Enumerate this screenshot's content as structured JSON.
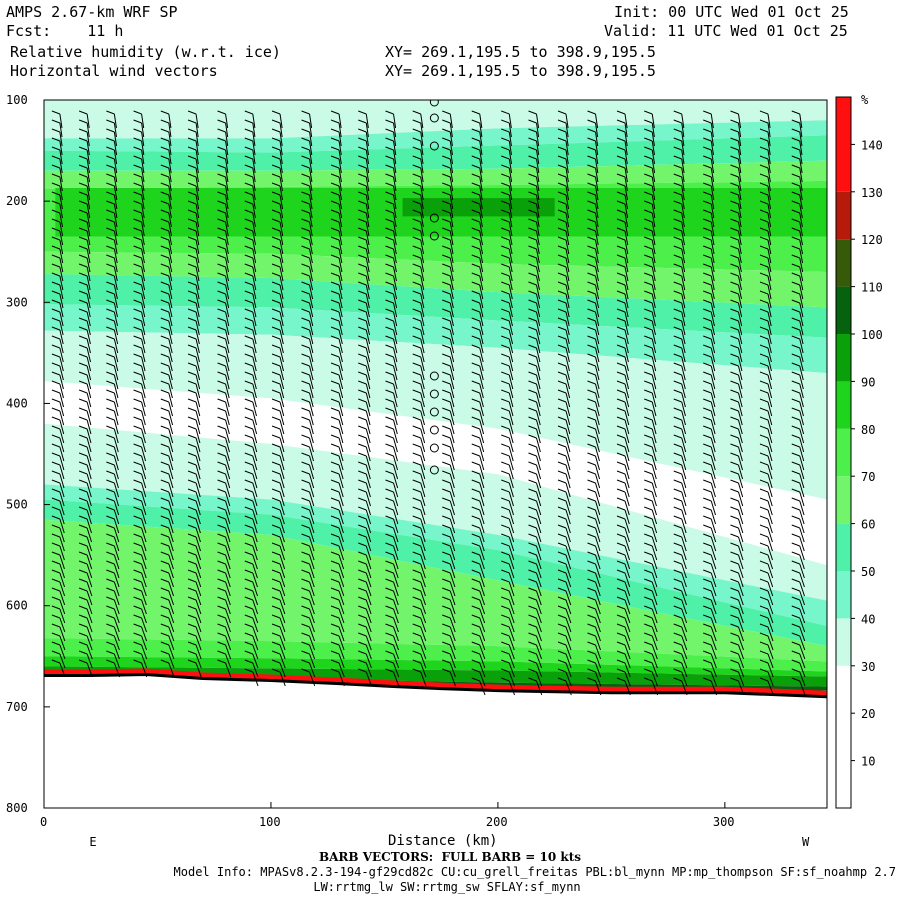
{
  "header": {
    "model": "AMPS 2.67-km WRF SP",
    "fcst_label": "Fcst:",
    "fcst_value": "11 h",
    "field1": "Relative humidity (w.r.t. ice)",
    "field2": "Horizontal wind vectors",
    "xy1": "XY= 269.1,195.5 to 398.9,195.5",
    "xy2": "XY= 269.1,195.5 to 398.9,195.5",
    "init": "Init: 00 UTC Wed 01 Oct 25",
    "valid": "Valid: 11 UTC Wed 01 Oct 25"
  },
  "footer": {
    "barb": "BARB VECTORS:  FULL BARB = 10 kts",
    "model_info": "Model Info: MPASv8.2.3-194-gf29cd82c CU:cu_grell_freitas PBL:bl_mynn MP:mp_thompson SF:sf_noahmp 2.7",
    "model_info2": "LW:rrtmg_lw SW:rrtmg_sw SFLAY:sf_mynn"
  },
  "chart_data": {
    "type": "heatmap",
    "xlabel": "Distance (km)",
    "ylabel": "",
    "xlim": [
      0,
      345
    ],
    "ylim": [
      100,
      800
    ],
    "x_ticks": [
      0,
      100,
      200,
      300
    ],
    "y_ticks": [
      100,
      200,
      300,
      400,
      500,
      600,
      700,
      800
    ],
    "left_end_label": "E",
    "right_end_label": "W",
    "colorbar": {
      "unit": "%",
      "ticks": [
        10,
        20,
        30,
        40,
        50,
        60,
        70,
        80,
        90,
        100,
        110,
        120,
        130,
        140
      ],
      "bins": [
        {
          "from": 0,
          "to": 20,
          "color": "#ffffff"
        },
        {
          "from": 20,
          "to": 30,
          "color": "#ffffff"
        },
        {
          "from": 30,
          "to": 40,
          "color": "#c9fbe6"
        },
        {
          "from": 40,
          "to": 50,
          "color": "#77f5cb"
        },
        {
          "from": 50,
          "to": 60,
          "color": "#4ff0a8"
        },
        {
          "from": 60,
          "to": 70,
          "color": "#72f56b"
        },
        {
          "from": 70,
          "to": 80,
          "color": "#4df04a"
        },
        {
          "from": 80,
          "to": 90,
          "color": "#1fd41c"
        },
        {
          "from": 90,
          "to": 100,
          "color": "#0aa00a"
        },
        {
          "from": 100,
          "to": 110,
          "color": "#06620e"
        },
        {
          "from": 110,
          "to": 120,
          "color": "#375a09"
        },
        {
          "from": 120,
          "to": 130,
          "color": "#b71a0a"
        },
        {
          "from": 130,
          "to": 150,
          "color": "#ff0f0f"
        }
      ]
    },
    "rh_bands": [
      {
        "rh": 30,
        "top": [
          100,
          100,
          100,
          100
        ],
        "bottom": [
          138,
          138,
          128,
          120
        ]
      },
      {
        "rh": 40,
        "top": [
          138,
          138,
          128,
          120
        ],
        "bottom": [
          150,
          152,
          145,
          135
        ]
      },
      {
        "rh": 50,
        "top": [
          150,
          152,
          145,
          135
        ],
        "bottom": [
          170,
          170,
          168,
          160
        ]
      },
      {
        "rh": 60,
        "top": [
          170,
          170,
          168,
          160
        ],
        "bottom": [
          188,
          186,
          184,
          180
        ]
      },
      {
        "rh": 70,
        "top": [
          188,
          186,
          184,
          180
        ],
        "bottom": [
          250,
          252,
          262,
          270
        ]
      },
      {
        "rh": 60,
        "top": [
          250,
          252,
          262,
          270
        ],
        "bottom": [
          272,
          276,
          290,
          305
        ]
      },
      {
        "rh": 50,
        "top": [
          272,
          276,
          290,
          305
        ],
        "bottom": [
          302,
          305,
          318,
          335
        ]
      },
      {
        "rh": 40,
        "top": [
          302,
          305,
          318,
          335
        ],
        "bottom": [
          328,
          332,
          345,
          370
        ]
      },
      {
        "rh": 30,
        "top": [
          328,
          332,
          345,
          370
        ],
        "bottom": [
          378,
          395,
          425,
          495
        ]
      },
      {
        "rh": 20,
        "top": [
          378,
          395,
          425,
          495
        ],
        "bottom": [
          420,
          440,
          470,
          560
        ]
      },
      {
        "rh": 30,
        "top": [
          420,
          440,
          470,
          560
        ],
        "bottom": [
          480,
          495,
          530,
          595
        ]
      },
      {
        "rh": 40,
        "top": [
          480,
          495,
          530,
          595
        ],
        "bottom": [
          495,
          510,
          545,
          620
        ]
      },
      {
        "rh": 50,
        "top": [
          495,
          510,
          545,
          620
        ],
        "bottom": [
          515,
          530,
          575,
          640
        ]
      },
      {
        "rh": 60,
        "top": [
          515,
          530,
          575,
          640
        ],
        "bottom": [
          632,
          635,
          640,
          655
        ]
      },
      {
        "rh": 70,
        "top": [
          632,
          635,
          640,
          655
        ],
        "bottom": [
          650,
          652,
          655,
          665
        ]
      },
      {
        "rh": 80,
        "top": [
          650,
          652,
          655,
          665
        ],
        "bottom": [
          660,
          662,
          664,
          670
        ]
      },
      {
        "rh": 90,
        "top": [
          660,
          662,
          664,
          670
        ],
        "bottom": [
          668,
          672,
          676,
          680
        ]
      },
      {
        "rh": 100,
        "top": [
          668,
          672,
          676,
          680
        ],
        "bottom": [
          672,
          677,
          681,
          684
        ]
      }
    ],
    "band_x": [
      0,
      100,
      200,
      345
    ],
    "rh_patches": [
      {
        "rh": 80,
        "x": [
          5,
          350
        ],
        "top": [
          187,
          187
        ],
        "bottom": [
          235,
          235
        ]
      },
      {
        "rh": 90,
        "x": [
          158,
          225
        ],
        "top": [
          197,
          197
        ],
        "bottom": [
          215,
          215
        ]
      }
    ],
    "terrain": {
      "x": [
        0,
        20,
        45,
        70,
        100,
        130,
        155,
        175,
        200,
        250,
        300,
        345
      ],
      "p": [
        669,
        669,
        668,
        672,
        674,
        677,
        680,
        682,
        684,
        686,
        686,
        690
      ]
    },
    "barb_columns_x": [
      7,
      19,
      31,
      43,
      55,
      67,
      80,
      92,
      104,
      117,
      130,
      142,
      154,
      166,
      179,
      192,
      205,
      217,
      230,
      243,
      256,
      268,
      281,
      294,
      306,
      319,
      333
    ],
    "calm_column_x": 172
  }
}
